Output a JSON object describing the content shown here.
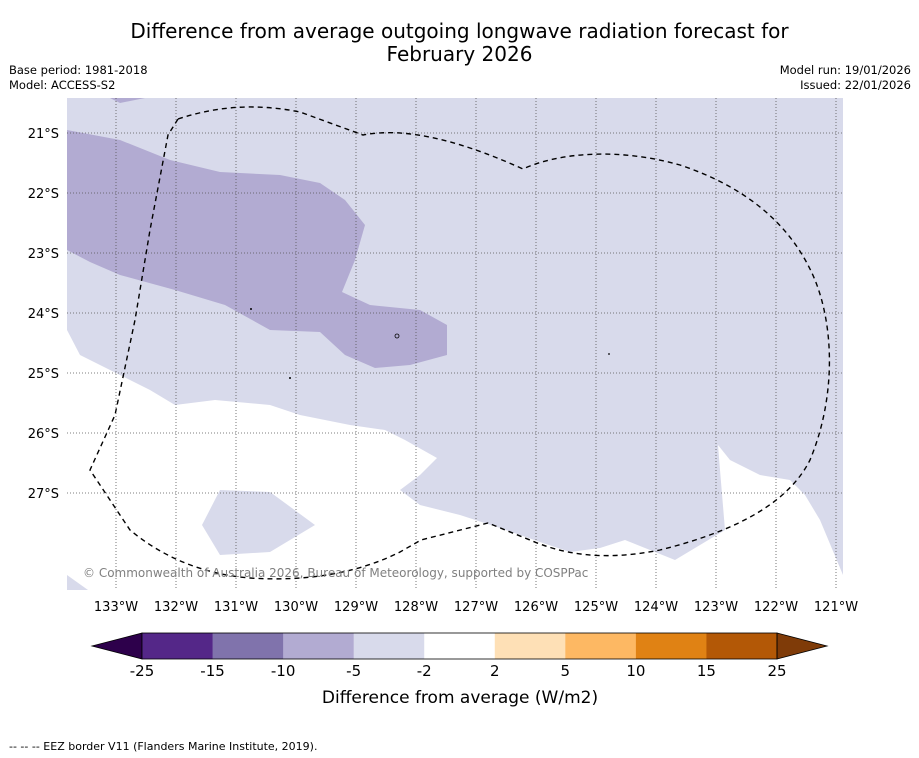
{
  "title_line1": "Difference from average outgoing longwave radiation forecast for",
  "title_line2": "February 2026",
  "base_period": "Base period: 1981-2018",
  "model": "Model: ACCESS-S2",
  "model_run": "Model run: 19/01/2026",
  "issued": "Issued: 22/01/2026",
  "latitude_labels": [
    "21°S",
    "22°S",
    "23°S",
    "24°S",
    "25°S",
    "26°S",
    "27°S"
  ],
  "longitude_labels": [
    "133°W",
    "132°W",
    "131°W",
    "130°W",
    "129°W",
    "128°W",
    "127°W",
    "126°W",
    "125°W",
    "124°W",
    "123°W",
    "122°W",
    "121°W"
  ],
  "copyright": "© Commonwealth of Australia 2026, Bureau of Meteorology, supported by COSPPac",
  "colorbar": {
    "ticks": [
      "-25",
      "-15",
      "-10",
      "-5",
      "-2",
      "2",
      "5",
      "10",
      "15",
      "25"
    ],
    "colors": [
      "#542788",
      "#8073ac",
      "#b2abd2",
      "#d8daeb",
      "#ffffff",
      "#fee0b6",
      "#fdb863",
      "#e08214",
      "#b35806"
    ],
    "under_color": "#2d004b",
    "over_color": "#7f3b08",
    "title": "Difference from average (W/m2)"
  },
  "legend_eez": "--  --  -- EEZ border V11 (Flanders Marine Institute, 2019)."
}
